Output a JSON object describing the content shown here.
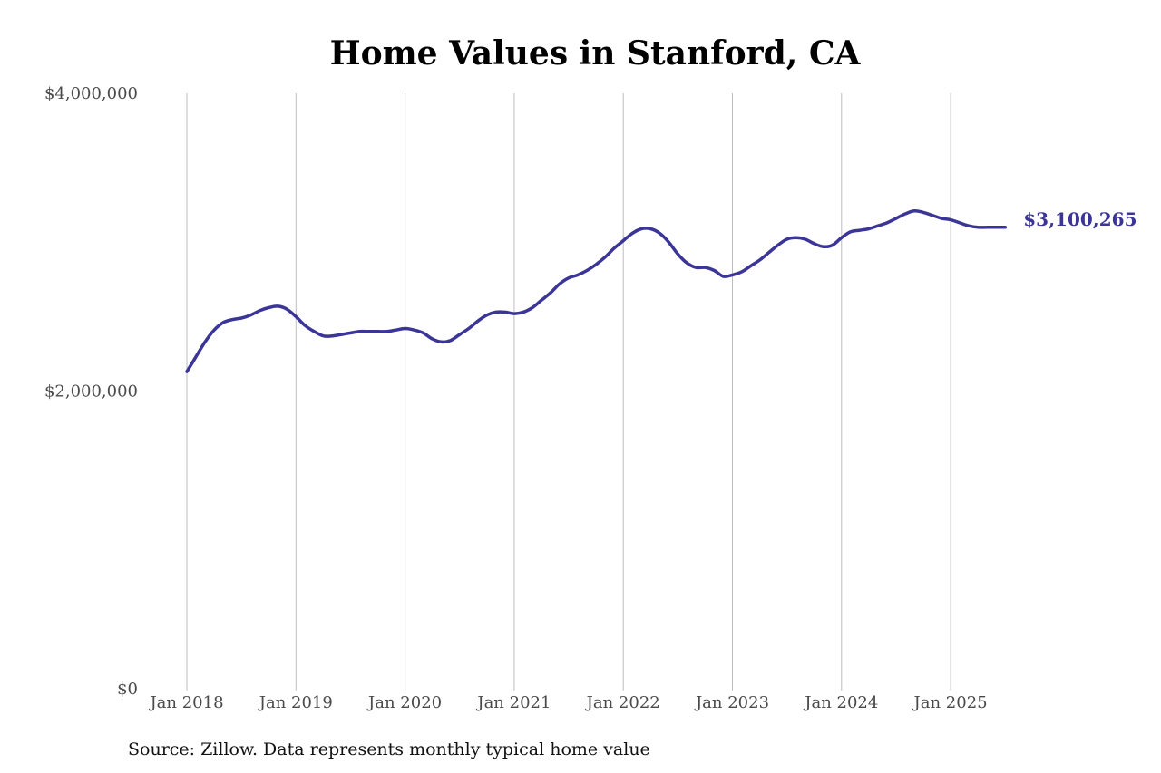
{
  "chart_data": {
    "type": "line",
    "title": "Home Values in Stanford, CA",
    "xlabel": "",
    "ylabel": "",
    "ylim": [
      0,
      4000000
    ],
    "y_ticks": [
      {
        "value": 0,
        "label": "$0"
      },
      {
        "value": 2000000,
        "label": "$2,000,000"
      },
      {
        "value": 4000000,
        "label": "$4,000,000"
      }
    ],
    "x_ticks": [
      {
        "value": "2018-01",
        "label": "Jan 2018"
      },
      {
        "value": "2019-01",
        "label": "Jan 2019"
      },
      {
        "value": "2020-01",
        "label": "Jan 2020"
      },
      {
        "value": "2021-01",
        "label": "Jan 2021"
      },
      {
        "value": "2022-01",
        "label": "Jan 2022"
      },
      {
        "value": "2023-01",
        "label": "Jan 2023"
      },
      {
        "value": "2024-01",
        "label": "Jan 2024"
      },
      {
        "value": "2025-01",
        "label": "Jan 2025"
      }
    ],
    "xlim": [
      "2018-01",
      "2025-07"
    ],
    "grid": "vertical",
    "line_color": "#3a3596",
    "series": [
      {
        "name": "",
        "x": [
          "2018-01",
          "2018-02",
          "2018-03",
          "2018-04",
          "2018-05",
          "2018-06",
          "2018-07",
          "2018-08",
          "2018-09",
          "2018-10",
          "2018-11",
          "2018-12",
          "2019-01",
          "2019-02",
          "2019-03",
          "2019-04",
          "2019-05",
          "2019-06",
          "2019-07",
          "2019-08",
          "2019-09",
          "2019-10",
          "2019-11",
          "2019-12",
          "2020-01",
          "2020-02",
          "2020-03",
          "2020-04",
          "2020-05",
          "2020-06",
          "2020-07",
          "2020-08",
          "2020-09",
          "2020-10",
          "2020-11",
          "2020-12",
          "2021-01",
          "2021-02",
          "2021-03",
          "2021-04",
          "2021-05",
          "2021-06",
          "2021-07",
          "2021-08",
          "2021-09",
          "2021-10",
          "2021-11",
          "2021-12",
          "2022-01",
          "2022-02",
          "2022-03",
          "2022-04",
          "2022-05",
          "2022-06",
          "2022-07",
          "2022-08",
          "2022-09",
          "2022-10",
          "2022-11",
          "2022-12",
          "2023-01",
          "2023-02",
          "2023-03",
          "2023-04",
          "2023-05",
          "2023-06",
          "2023-07",
          "2023-08",
          "2023-09",
          "2023-10",
          "2023-11",
          "2023-12",
          "2024-01",
          "2024-02",
          "2024-03",
          "2024-04",
          "2024-05",
          "2024-06",
          "2024-07",
          "2024-08",
          "2024-09",
          "2024-10",
          "2024-11",
          "2024-12",
          "2025-01",
          "2025-02",
          "2025-03",
          "2025-04",
          "2025-05",
          "2025-06",
          "2025-07"
        ],
        "values": [
          2130000,
          2230000,
          2330000,
          2410000,
          2460000,
          2480000,
          2490000,
          2510000,
          2540000,
          2560000,
          2570000,
          2550000,
          2500000,
          2440000,
          2400000,
          2370000,
          2370000,
          2380000,
          2390000,
          2400000,
          2400000,
          2400000,
          2400000,
          2410000,
          2420000,
          2410000,
          2390000,
          2350000,
          2330000,
          2340000,
          2380000,
          2420000,
          2470000,
          2510000,
          2530000,
          2530000,
          2520000,
          2530000,
          2560000,
          2610000,
          2660000,
          2720000,
          2760000,
          2780000,
          2810000,
          2850000,
          2900000,
          2960000,
          3010000,
          3060000,
          3090000,
          3090000,
          3060000,
          3000000,
          2920000,
          2860000,
          2830000,
          2830000,
          2810000,
          2770000,
          2780000,
          2800000,
          2840000,
          2880000,
          2930000,
          2980000,
          3020000,
          3030000,
          3020000,
          2990000,
          2970000,
          2980000,
          3030000,
          3070000,
          3080000,
          3090000,
          3110000,
          3130000,
          3160000,
          3190000,
          3210000,
          3200000,
          3180000,
          3160000,
          3150000,
          3130000,
          3110000,
          3100265,
          3100265,
          3100265,
          3100265
        ]
      }
    ],
    "end_label": "$3,100,265"
  },
  "source_note": "Source: Zillow. Data represents monthly typical home value"
}
